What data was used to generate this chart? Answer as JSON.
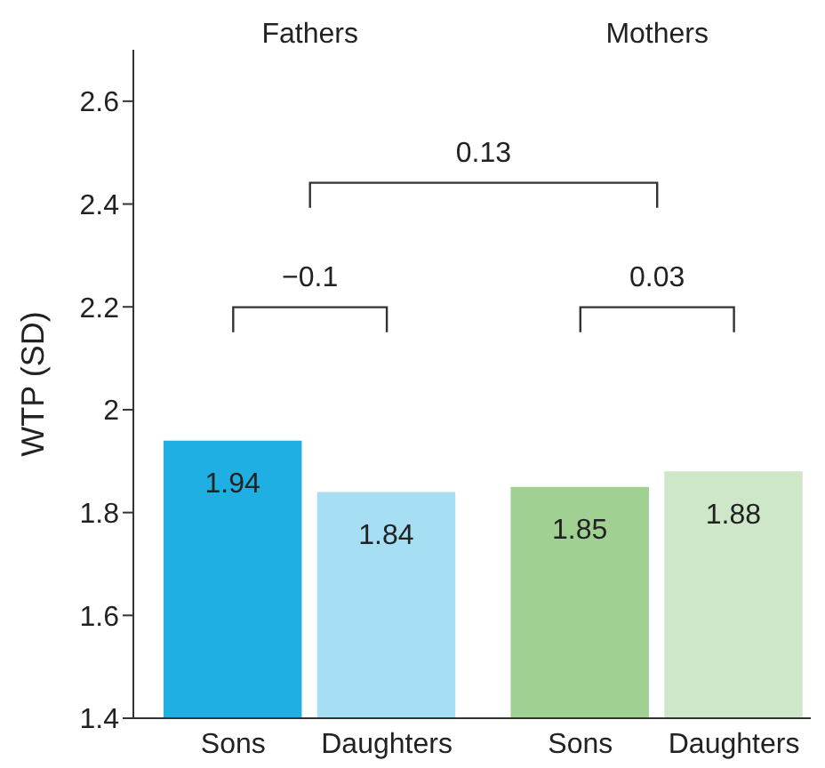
{
  "chart_data": {
    "type": "bar",
    "ylabel": "WTP (SD)",
    "categories": [
      "Sons",
      "Daughters",
      "Sons",
      "Daughters"
    ],
    "values": [
      1.94,
      1.84,
      1.85,
      1.88
    ],
    "colors": [
      "#1fafe3",
      "#a6dff3",
      "#a0d193",
      "#cfe7c9"
    ],
    "ylim": [
      1.4,
      2.7
    ],
    "yticks": [
      1.4,
      1.6,
      1.8,
      2,
      2.2,
      2.4,
      2.6
    ],
    "data_labels": true,
    "annotations": [
      "Fathers",
      "Mothers",
      "−0.1",
      "0.03",
      "0.13"
    ]
  }
}
